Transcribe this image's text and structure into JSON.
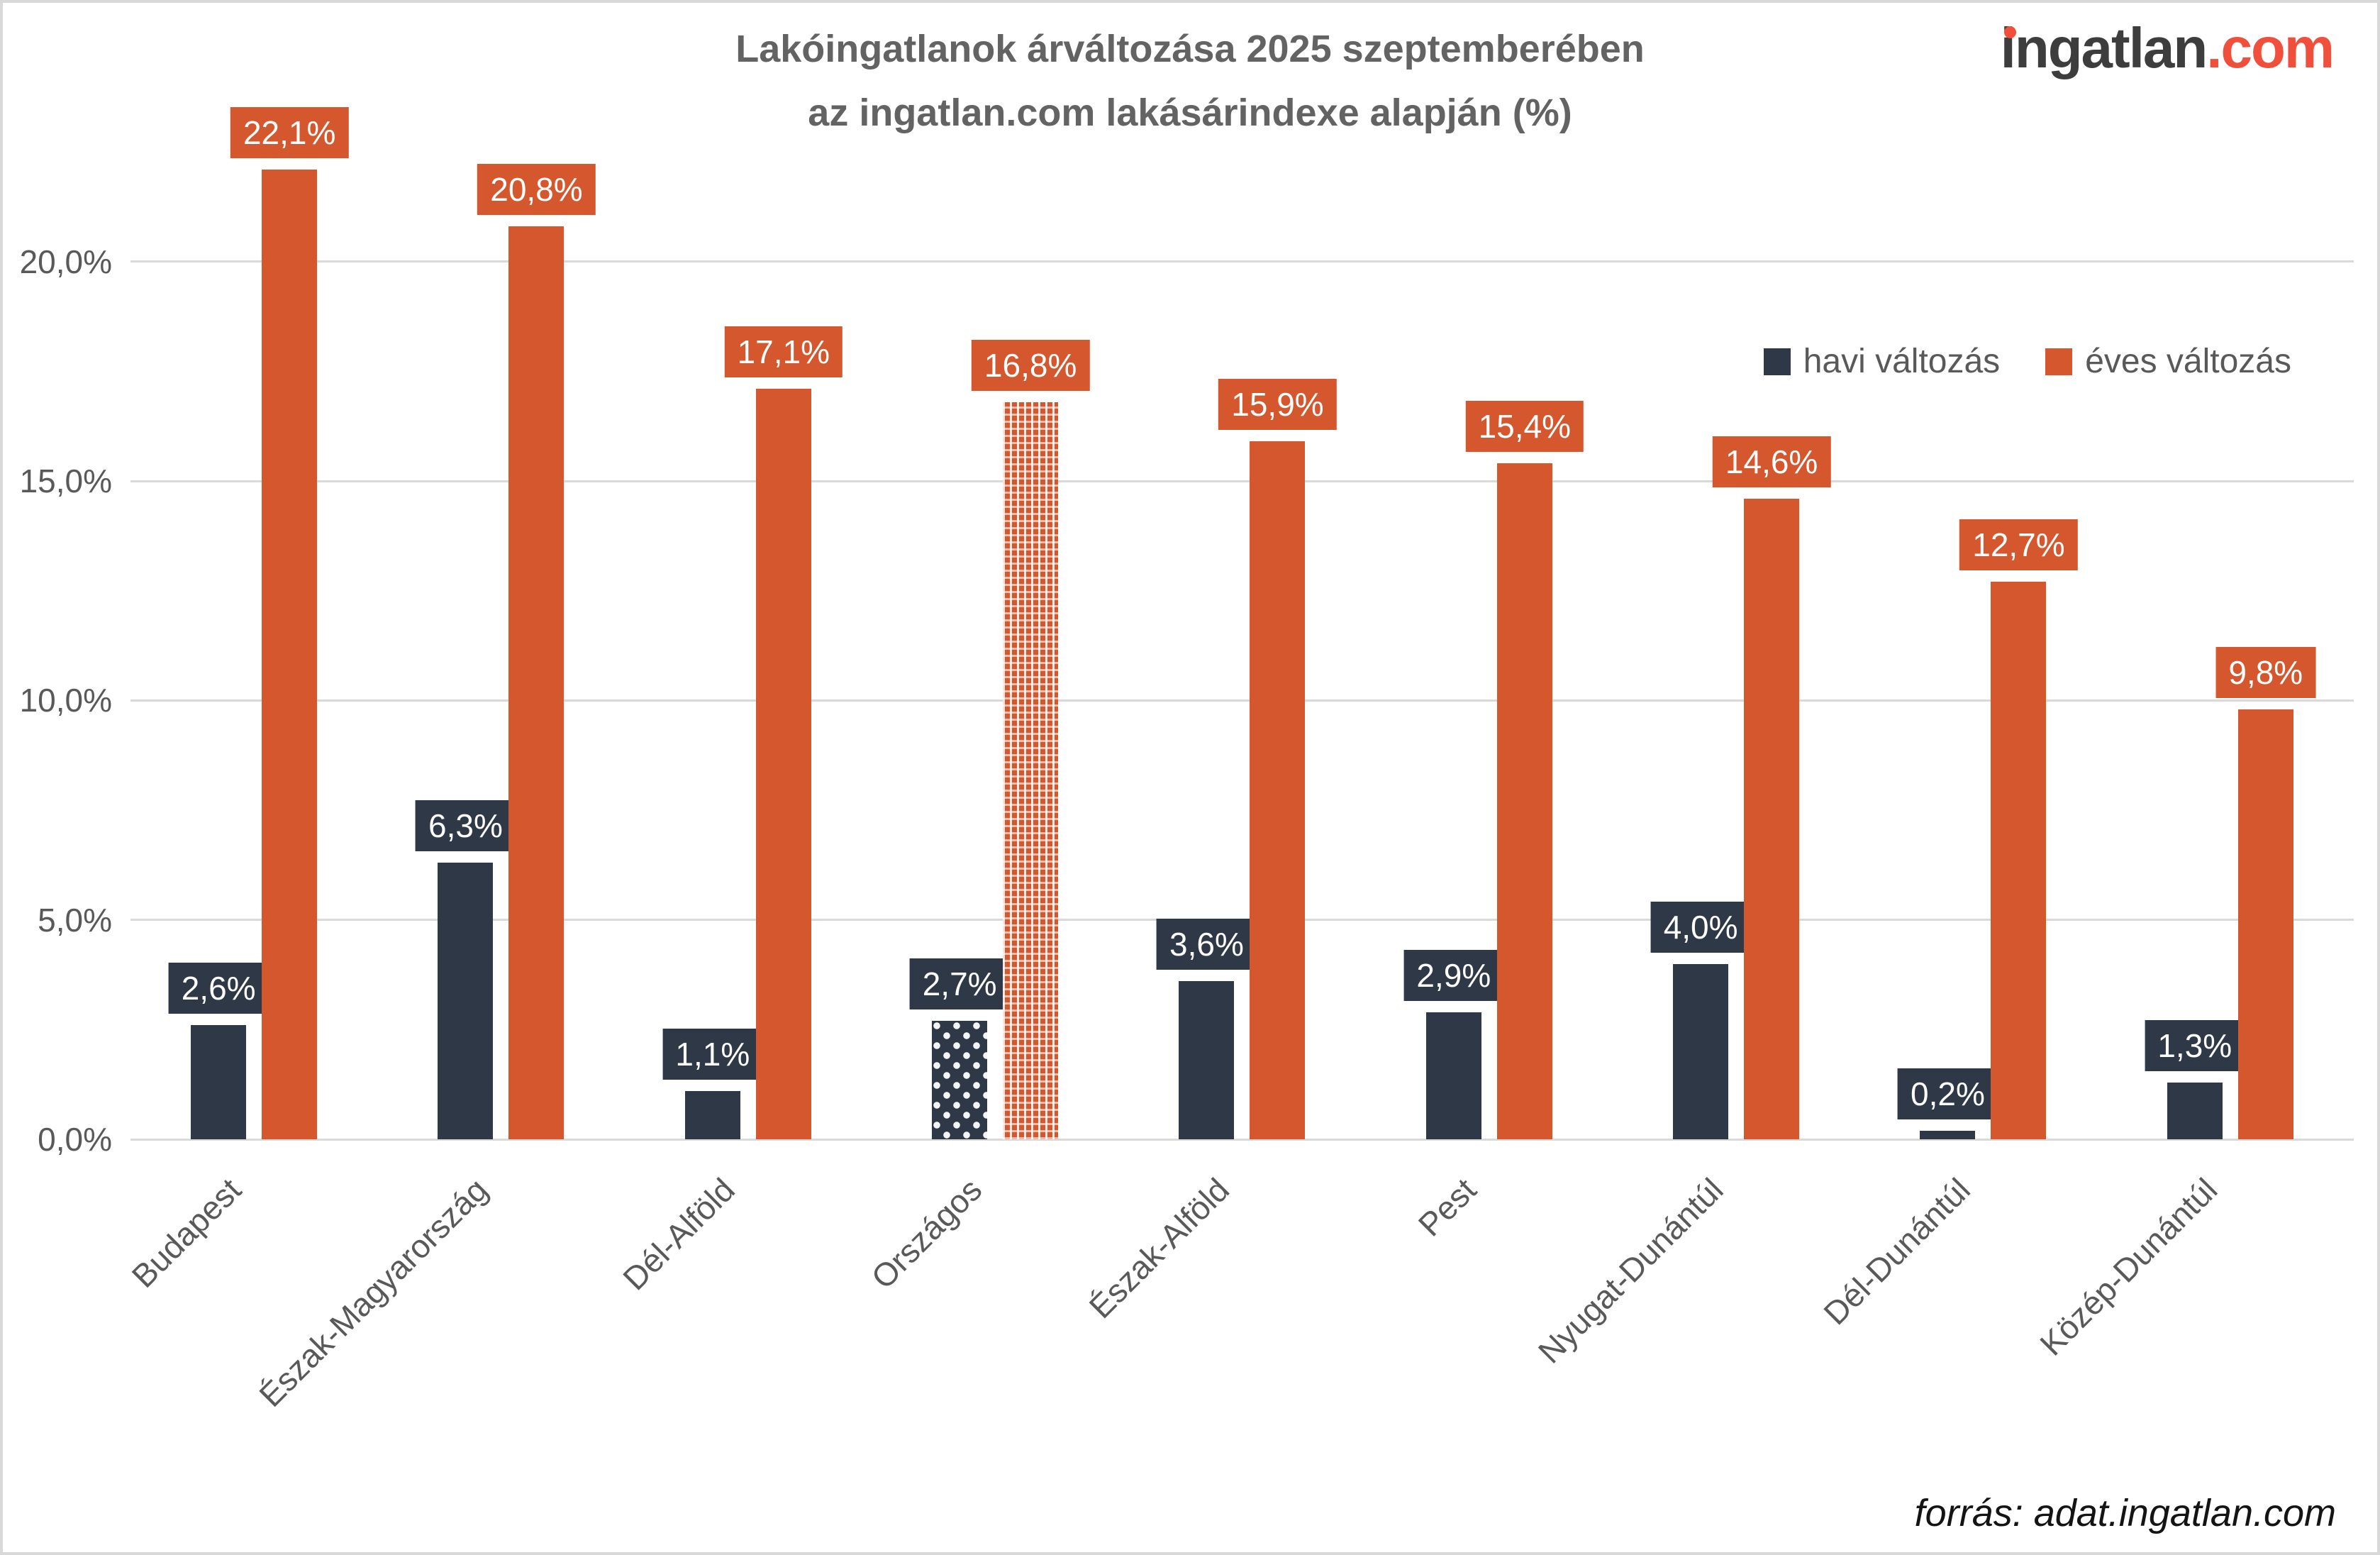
{
  "page": {
    "title_line1": "Lakóingatlanok árváltozása 2025 szeptemberében",
    "title_line2": "az ingatlan.com lakásárindexe alapján (%)",
    "source_note": "forrás: adat.ingatlan.com"
  },
  "logo": {
    "part_dark": "ingatlan",
    "part_orange": ".com"
  },
  "legend": {
    "monthly_label": "havi változás",
    "yearly_label": "éves változás"
  },
  "colors": {
    "monthly": "#2f3847",
    "yearly": "#d4572e",
    "grid": "#d9d9d9",
    "axis_text": "#595959",
    "title_text": "#636363",
    "logo_dark": "#3d3d3d",
    "logo_orange": "#f04f3b",
    "badge_text": "#ffffff"
  },
  "chart_data": {
    "type": "bar",
    "title": "Lakóingatlanok árváltozása 2025 szeptemberében az ingatlan.com lakásárindexe alapján (%)",
    "categories": [
      "Budapest",
      "Észak-Magyarország",
      "Dél-Alföld",
      "Országos",
      "Észak-Alföld",
      "Pest",
      "Nyugat-Dunántúl",
      "Dél-Dunántúl",
      "Közép-Dunántúl"
    ],
    "series": [
      {
        "name": "havi változás",
        "color": "#2f3847",
        "values": [
          2.6,
          6.3,
          1.1,
          2.7,
          3.6,
          2.9,
          4.0,
          0.2,
          1.3
        ],
        "labels": [
          "2,6%",
          "6,3%",
          "1,1%",
          "2,7%",
          "3,6%",
          "2,9%",
          "4,0%",
          "0,2%",
          "1,3%"
        ]
      },
      {
        "name": "éves változás",
        "color": "#d4572e",
        "values": [
          22.1,
          20.8,
          17.1,
          16.8,
          15.9,
          15.4,
          14.6,
          12.7,
          9.8
        ],
        "labels": [
          "22,1%",
          "20,8%",
          "17,1%",
          "16,8%",
          "15,9%",
          "15,4%",
          "14,6%",
          "12,7%",
          "9,8%"
        ]
      }
    ],
    "patterned_category": "Országos",
    "patterned_index": 3,
    "ylim": [
      0,
      22.5
    ],
    "yticks": [
      {
        "value": 0,
        "label": "0,0%"
      },
      {
        "value": 5,
        "label": "5,0%"
      },
      {
        "value": 10,
        "label": "10,0%"
      },
      {
        "value": 15,
        "label": "15,0%"
      },
      {
        "value": 20,
        "label": "20,0%"
      }
    ],
    "grid": "horizontal",
    "legend_position": "top-right",
    "xlabel": "",
    "ylabel": ""
  }
}
